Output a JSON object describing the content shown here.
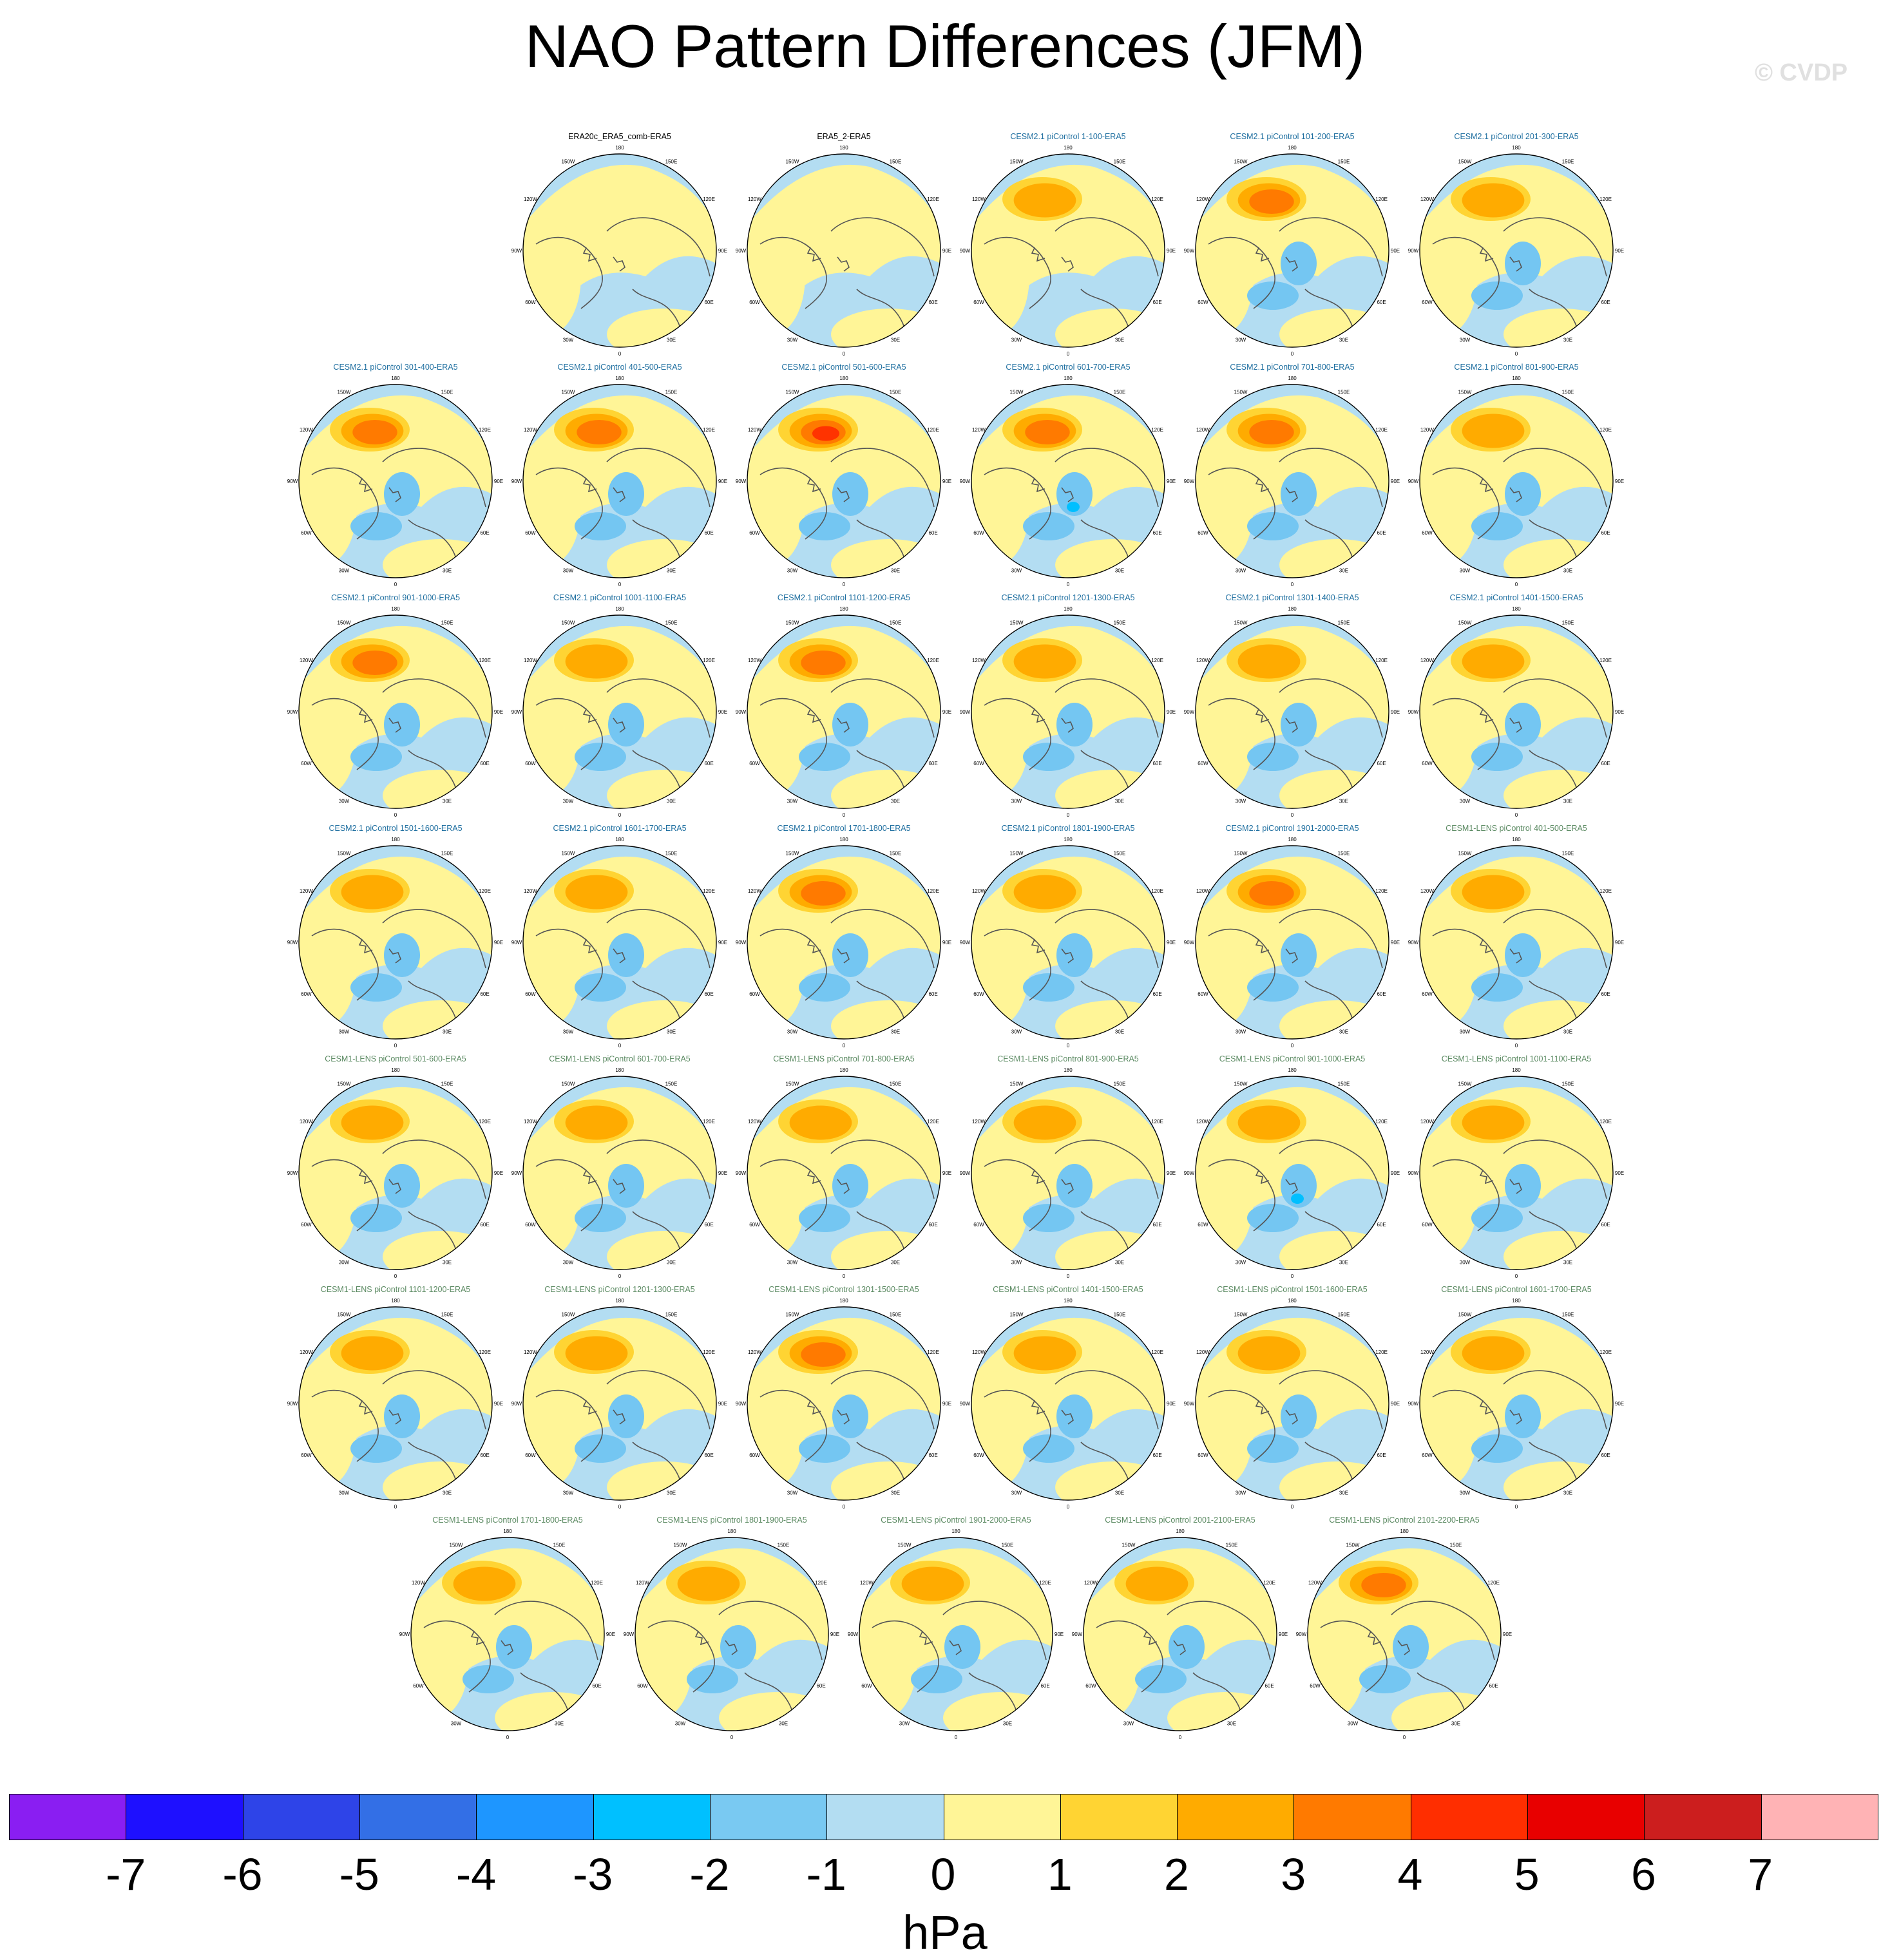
{
  "title": "NAO Pattern Differences (JFM)",
  "watermark": "© CVDP",
  "map": {
    "projection": "north polar stereographic",
    "lon_labels": [
      "180",
      "150E",
      "120E",
      "90E",
      "60E",
      "30E",
      "0",
      "30W",
      "60W",
      "90W",
      "120W",
      "150W"
    ],
    "colors": {
      "ocean_near_zero_negative": "#b3ddf2",
      "near_zero_positive": "#fff597",
      "positive_1_2": "#ffd433",
      "positive_2_3": "#ffab00",
      "positive_3_4": "#ff7a00",
      "positive_4_5": "#ff3300",
      "negative_1_2": "#74c6f2",
      "negative_2_3": "#00bfff",
      "coastline": "#555555"
    }
  },
  "panels": [
    {
      "title": "ERA20c_ERA5_comb-ERA5",
      "group": "obs",
      "pos": 0.3,
      "neg": 0.3
    },
    {
      "title": "ERA5_2-ERA5",
      "group": "obs",
      "pos": 0.2,
      "neg": 0.2
    },
    {
      "title": "CESM2.1 piControl 1-100-ERA5",
      "group": "cesm2",
      "pos": 2,
      "neg": 0.6
    },
    {
      "title": "CESM2.1 piControl 101-200-ERA5",
      "group": "cesm2",
      "pos": 3.2,
      "neg": 1.3
    },
    {
      "title": "CESM2.1 piControl 201-300-ERA5",
      "group": "cesm2",
      "pos": 2.8,
      "neg": 1.3
    },
    {
      "title": "CESM2.1 piControl 301-400-ERA5",
      "group": "cesm2",
      "pos": 3.5,
      "neg": 1.3
    },
    {
      "title": "CESM2.1 piControl 401-500-ERA5",
      "group": "cesm2",
      "pos": 3.2,
      "neg": 1.3
    },
    {
      "title": "CESM2.1 piControl 501-600-ERA5",
      "group": "cesm2",
      "pos": 4.3,
      "neg": 1.4
    },
    {
      "title": "CESM2.1 piControl 601-700-ERA5",
      "group": "cesm2",
      "pos": 3.4,
      "neg": 2.1
    },
    {
      "title": "CESM2.1 piControl 701-800-ERA5",
      "group": "cesm2",
      "pos": 3.1,
      "neg": 1.2
    },
    {
      "title": "CESM2.1 piControl 801-900-ERA5",
      "group": "cesm2",
      "pos": 2.6,
      "neg": 1.3
    },
    {
      "title": "CESM2.1 piControl 901-1000-ERA5",
      "group": "cesm2",
      "pos": 3.4,
      "neg": 1.3
    },
    {
      "title": "CESM2.1 piControl 1001-1100-ERA5",
      "group": "cesm2",
      "pos": 2.8,
      "neg": 1.5
    },
    {
      "title": "CESM2.1 piControl 1101-1200-ERA5",
      "group": "cesm2",
      "pos": 3.3,
      "neg": 1.2
    },
    {
      "title": "CESM2.1 piControl 1201-1300-ERA5",
      "group": "cesm2",
      "pos": 2.4,
      "neg": 1.3
    },
    {
      "title": "CESM2.1 piControl 1301-1400-ERA5",
      "group": "cesm2",
      "pos": 2.3,
      "neg": 1.2
    },
    {
      "title": "CESM2.1 piControl 1401-1500-ERA5",
      "group": "cesm2",
      "pos": 2.7,
      "neg": 1.4
    },
    {
      "title": "CESM2.1 piControl 1501-1600-ERA5",
      "group": "cesm2",
      "pos": 2.6,
      "neg": 1.2
    },
    {
      "title": "CESM2.1 piControl 1601-1700-ERA5",
      "group": "cesm2",
      "pos": 2.4,
      "neg": 1.1
    },
    {
      "title": "CESM2.1 piControl 1701-1800-ERA5",
      "group": "cesm2",
      "pos": 3.1,
      "neg": 1.2
    },
    {
      "title": "CESM2.1 piControl 1801-1900-ERA5",
      "group": "cesm2",
      "pos": 2.5,
      "neg": 1.1
    },
    {
      "title": "CESM2.1 piControl 1901-2000-ERA5",
      "group": "cesm2",
      "pos": 3.3,
      "neg": 1.3
    },
    {
      "title": "CESM1-LENS piControl 401-500-ERA5",
      "group": "cesm1",
      "pos": 2.4,
      "neg": 1.1
    },
    {
      "title": "CESM1-LENS piControl 501-600-ERA5",
      "group": "cesm1",
      "pos": 2.6,
      "neg": 1.2
    },
    {
      "title": "CESM1-LENS piControl 601-700-ERA5",
      "group": "cesm1",
      "pos": 2.7,
      "neg": 1.3
    },
    {
      "title": "CESM1-LENS piControl 701-800-ERA5",
      "group": "cesm1",
      "pos": 2.6,
      "neg": 1.4
    },
    {
      "title": "CESM1-LENS piControl 801-900-ERA5",
      "group": "cesm1",
      "pos": 2.6,
      "neg": 1.2
    },
    {
      "title": "CESM1-LENS piControl 901-1000-ERA5",
      "group": "cesm1",
      "pos": 2.7,
      "neg": 2.1
    },
    {
      "title": "CESM1-LENS piControl 1001-1100-ERA5",
      "group": "cesm1",
      "pos": 2.3,
      "neg": 1.1
    },
    {
      "title": "CESM1-LENS piControl 1101-1200-ERA5",
      "group": "cesm1",
      "pos": 2.4,
      "neg": 1.3
    },
    {
      "title": "CESM1-LENS piControl 1201-1300-ERA5",
      "group": "cesm1",
      "pos": 2.8,
      "neg": 1.3
    },
    {
      "title": "CESM1-LENS piControl 1301-1500-ERA5",
      "group": "cesm1",
      "pos": 3.2,
      "neg": 1.6
    },
    {
      "title": "CESM1-LENS piControl 1401-1500-ERA5",
      "group": "cesm1",
      "pos": 2.4,
      "neg": 1.2
    },
    {
      "title": "CESM1-LENS piControl 1501-1600-ERA5",
      "group": "cesm1",
      "pos": 2.6,
      "neg": 1.4
    },
    {
      "title": "CESM1-LENS piControl 1601-1700-ERA5",
      "group": "cesm1",
      "pos": 2.4,
      "neg": 1.2
    },
    {
      "title": "CESM1-LENS piControl 1701-1800-ERA5",
      "group": "cesm1",
      "pos": 2.6,
      "neg": 1.2
    },
    {
      "title": "CESM1-LENS piControl 1801-1900-ERA5",
      "group": "cesm1",
      "pos": 2.6,
      "neg": 1.1
    },
    {
      "title": "CESM1-LENS piControl 1901-2000-ERA5",
      "group": "cesm1",
      "pos": 2.7,
      "neg": 1.2
    },
    {
      "title": "CESM1-LENS piControl 2001-2100-ERA5",
      "group": "cesm1",
      "pos": 2.6,
      "neg": 1.1
    },
    {
      "title": "CESM1-LENS piControl 2101-2200-ERA5",
      "group": "cesm1",
      "pos": 3.1,
      "neg": 1.2
    }
  ],
  "colorbar": {
    "labels": [
      "-7",
      "-6",
      "-5",
      "-4",
      "-3",
      "-2",
      "-1",
      "0",
      "1",
      "2",
      "3",
      "4",
      "5",
      "6",
      "7"
    ],
    "colors": [
      "#8a1ef2",
      "#1e10ff",
      "#2e44e8",
      "#336fe6",
      "#1e96ff",
      "#00c0ff",
      "#79c9f2",
      "#b3ddf2",
      "#fff597",
      "#ffd433",
      "#ffab00",
      "#ff7a00",
      "#ff2e00",
      "#e80000",
      "#cc1e1e",
      "#ffb3b5"
    ],
    "units": "hPa"
  }
}
